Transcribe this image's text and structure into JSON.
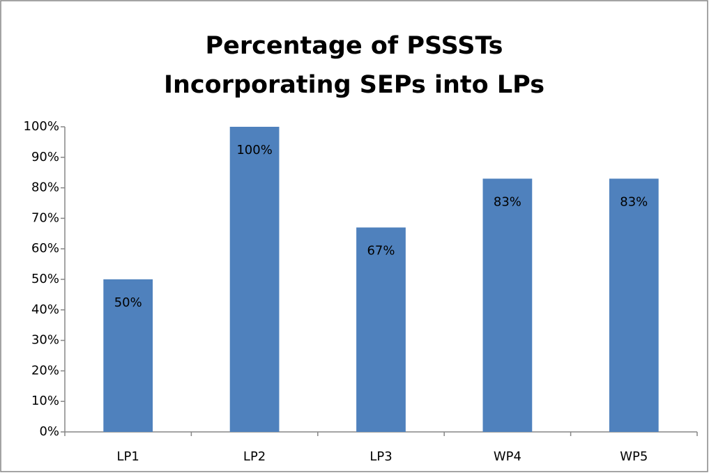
{
  "chart_data": {
    "type": "bar",
    "title": "Percentage of PSSSTs Incorporating SEPs into LPs",
    "categories": [
      "LP1",
      "LP2",
      "LP3",
      "WP4",
      "WP5"
    ],
    "values": [
      50,
      100,
      67,
      83,
      83
    ],
    "value_labels": [
      "50%",
      "100%",
      "67%",
      "83%",
      "83%"
    ],
    "color": "#4f81bd",
    "ylim": [
      0,
      100
    ],
    "yticks": [
      {
        "value": 0,
        "label": "0%"
      },
      {
        "value": 10,
        "label": "10%"
      },
      {
        "value": 20,
        "label": "20%"
      },
      {
        "value": 30,
        "label": "30%"
      },
      {
        "value": 40,
        "label": "40%"
      },
      {
        "value": 50,
        "label": "50%"
      },
      {
        "value": 60,
        "label": "60%"
      },
      {
        "value": 70,
        "label": "70%"
      },
      {
        "value": 80,
        "label": "80%"
      },
      {
        "value": 90,
        "label": "90%"
      },
      {
        "value": 100,
        "label": "100%"
      }
    ],
    "grid": false
  }
}
